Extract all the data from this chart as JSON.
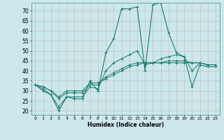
{
  "xlabel": "Humidex (Indice chaleur)",
  "bg_color": "#cce8ec",
  "line_color": "#1a7a6e",
  "x_ticks": [
    0,
    1,
    2,
    3,
    4,
    5,
    6,
    7,
    8,
    9,
    10,
    11,
    12,
    13,
    14,
    15,
    16,
    17,
    18,
    19,
    20,
    21,
    22,
    23
  ],
  "y_ticks": [
    20,
    25,
    30,
    35,
    40,
    45,
    50,
    55,
    60,
    65,
    70
  ],
  "xlim": [
    -0.5,
    23.5
  ],
  "ylim": [
    18,
    74
  ],
  "series": [
    [
      33,
      30,
      28,
      20,
      27,
      26,
      26,
      35,
      30,
      49,
      56,
      71,
      71,
      72,
      40,
      73,
      74,
      59,
      49,
      47,
      32,
      43,
      42,
      42
    ],
    [
      33,
      31,
      28,
      22,
      27,
      27,
      27,
      32,
      31,
      40,
      44,
      46,
      48,
      50,
      43,
      44,
      46,
      47,
      48,
      47,
      40,
      44,
      43,
      43
    ],
    [
      33,
      32,
      30,
      26,
      29,
      29,
      29,
      33,
      33,
      37,
      39,
      41,
      43,
      44,
      44,
      44,
      44,
      45,
      45,
      45,
      44,
      44,
      43,
      43
    ],
    [
      33,
      32,
      30,
      27,
      30,
      30,
      30,
      34,
      34,
      36,
      38,
      40,
      42,
      43,
      44,
      44,
      44,
      44,
      44,
      44,
      44,
      44,
      43,
      43
    ]
  ]
}
